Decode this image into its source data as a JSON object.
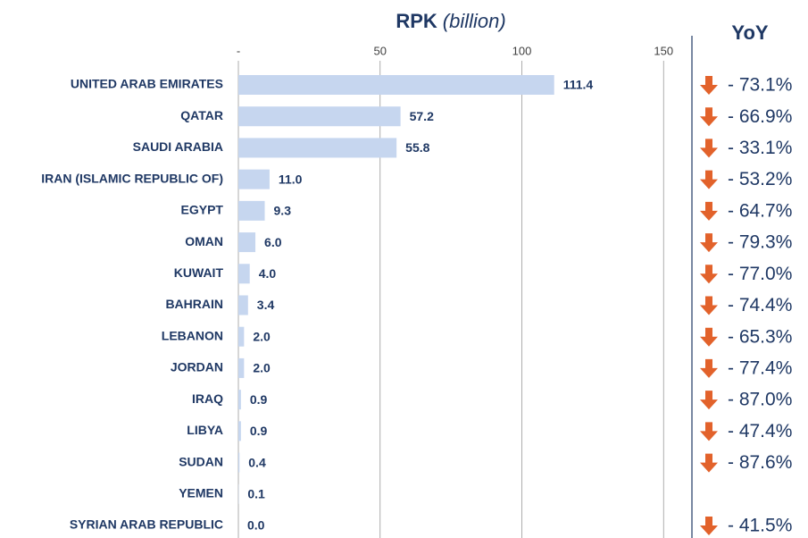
{
  "chart_data": {
    "type": "bar",
    "orientation": "horizontal",
    "title": {
      "main": "RPK",
      "unit": "(billion)"
    },
    "categories": [
      "UNITED ARAB EMIRATES",
      "QATAR",
      "SAUDI ARABIA",
      "IRAN (ISLAMIC REPUBLIC OF)",
      "EGYPT",
      "OMAN",
      "KUWAIT",
      "BAHRAIN",
      "LEBANON",
      "JORDAN",
      "IRAQ",
      "LIBYA",
      "SUDAN",
      "YEMEN",
      "SYRIAN ARAB REPUBLIC"
    ],
    "values": [
      111.4,
      57.2,
      55.8,
      11.0,
      9.3,
      6.0,
      4.0,
      3.4,
      2.0,
      2.0,
      0.9,
      0.9,
      0.4,
      0.1,
      0.0
    ],
    "value_labels": [
      "111.4",
      "57.2",
      "55.8",
      "11.0",
      "9.3",
      "6.0",
      "4.0",
      "3.4",
      "2.0",
      "2.0",
      "0.9",
      "0.9",
      "0.4",
      "0.1",
      "0.0"
    ],
    "color": "#c6d6ef",
    "xlim": [
      0,
      160
    ],
    "xticks": [
      {
        "value": 0,
        "label": "-"
      },
      50,
      100,
      150
    ],
    "grid": true,
    "yoy": {
      "name": "YoY",
      "color": "#e2622b",
      "values": [
        -73.1,
        -66.9,
        -33.1,
        -53.2,
        -64.7,
        -79.3,
        -77.0,
        -74.4,
        -65.3,
        -77.4,
        -87.0,
        -47.4,
        -87.6,
        null,
        -41.5
      ],
      "value_labels": [
        "- 73.1%",
        "- 66.9%",
        "- 33.1%",
        "- 53.2%",
        "- 64.7%",
        "- 79.3%",
        "- 77.0%",
        "- 74.4%",
        "- 65.3%",
        "- 77.4%",
        "- 87.0%",
        "- 47.4%",
        "- 87.6%",
        null,
        "- 41.5%"
      ]
    }
  }
}
